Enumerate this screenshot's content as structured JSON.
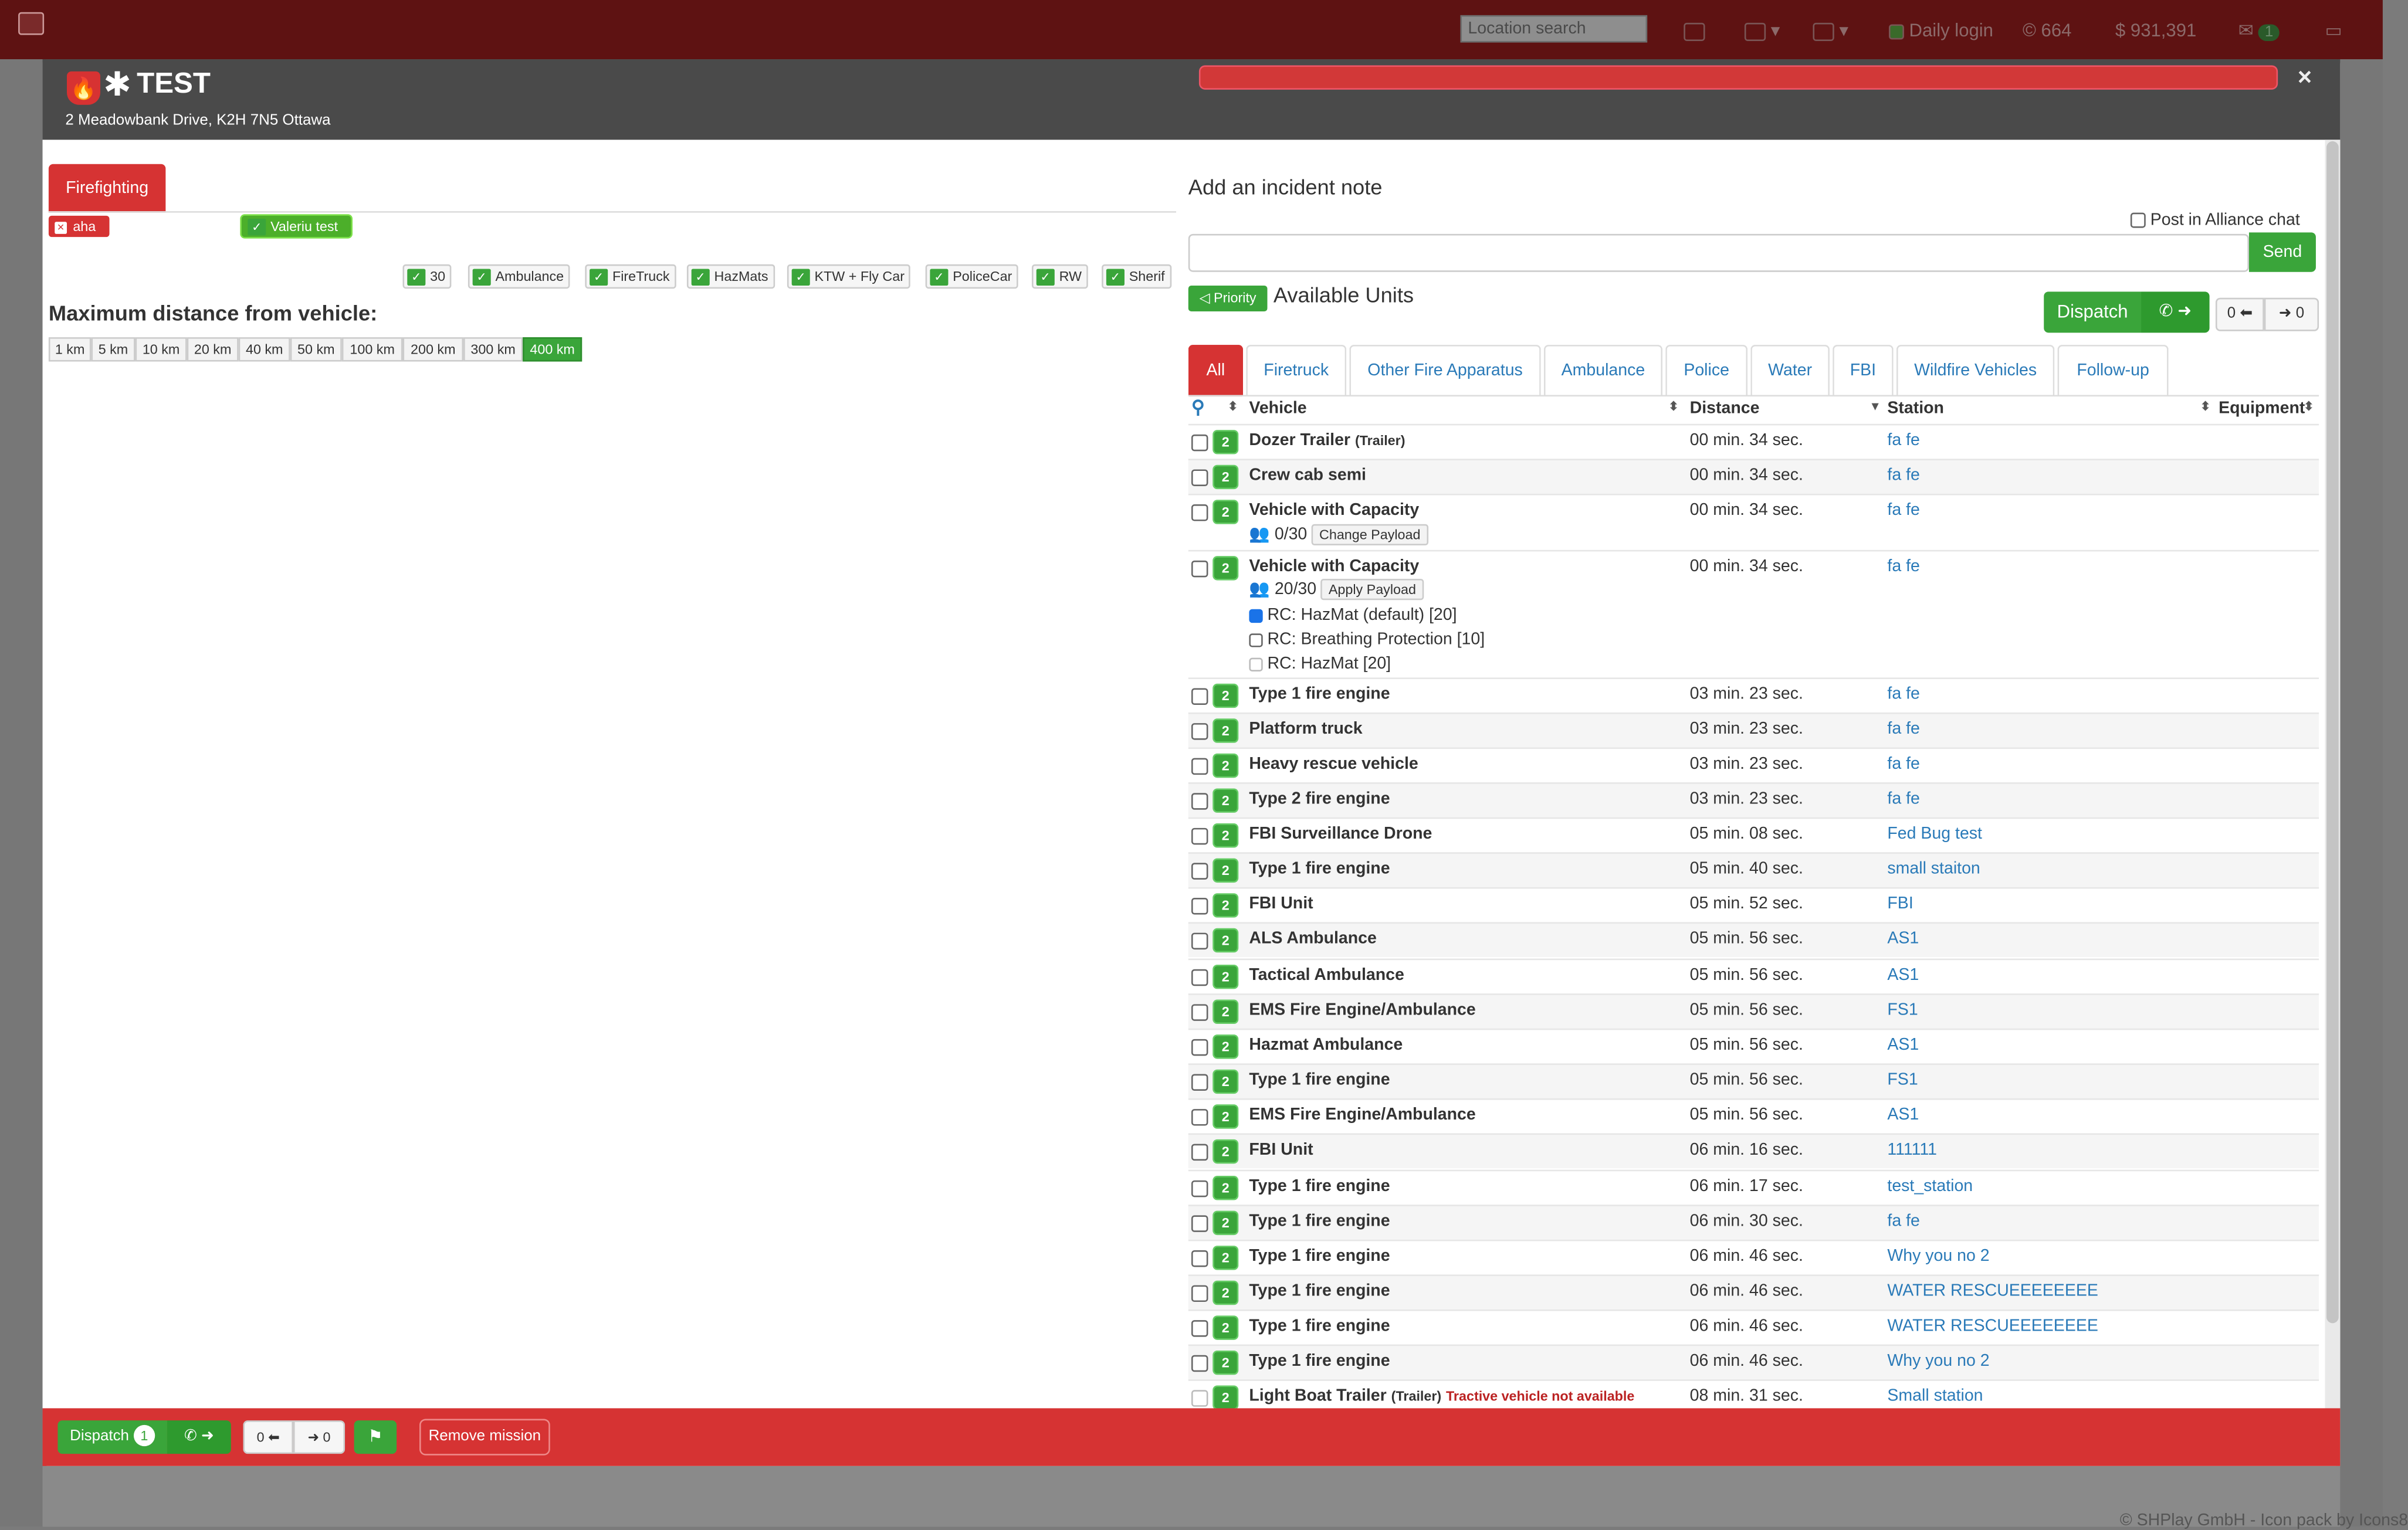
{
  "topbar": {
    "location_search_placeholder": "Location search",
    "daily_login": "Daily login",
    "coins": "664",
    "credits": "931,391",
    "messages_badge": "1"
  },
  "mission": {
    "title": "TEST",
    "address": "2 Meadowbank Drive, K2H 7N5 Ottawa",
    "close_label": "×"
  },
  "left": {
    "tab": "Firefighting",
    "tags": [
      "aha",
      "Valeriu test"
    ],
    "filters": [
      "30",
      "Ambulance",
      "FireTruck",
      "HazMats",
      "KTW + Fly Car",
      "PoliceCar",
      "RW",
      "Sherif"
    ],
    "max_distance_label": "Maximum distance from vehicle:",
    "distances": [
      "1 km",
      "5 km",
      "10 km",
      "20 km",
      "40 km",
      "50 km",
      "100 km",
      "200 km",
      "300 km",
      "400 km"
    ],
    "active_distance": "400 km"
  },
  "right": {
    "note_title": "Add an incident note",
    "post_alliance": "Post in Alliance chat",
    "send": "Send",
    "priority": "Priority",
    "available_units": "Available Units",
    "dispatch": "Dispatch",
    "back_count": "0",
    "forward_count": "0",
    "tabs": [
      "All",
      "Firetruck",
      "Other Fire Apparatus",
      "Ambulance",
      "Police",
      "Water",
      "FBI",
      "Wildfire Vehicles",
      "Follow-up"
    ],
    "columns": [
      "Vehicle",
      "Distance",
      "Station",
      "Equipment"
    ],
    "payload": {
      "row3_capacity": "0/30",
      "row3_button": "Change Payload",
      "row4_capacity": "20/30",
      "row4_button": "Apply Payload",
      "options": [
        "RC: HazMat (default) [20]",
        "RC: Breathing Protection [10]",
        "RC: HazMat [20]"
      ]
    },
    "rows": [
      {
        "count": "2",
        "vehicle": "Dozer Trailer",
        "tag": "(Trailer)",
        "distance": "00 min. 34 sec.",
        "station": "fa fe"
      },
      {
        "count": "2",
        "vehicle": "Crew cab semi",
        "distance": "00 min. 34 sec.",
        "station": "fa fe"
      },
      {
        "count": "2",
        "vehicle": "Vehicle with Capacity",
        "distance": "00 min. 34 sec.",
        "station": "fa fe"
      },
      {
        "count": "2",
        "vehicle": "Vehicle with Capacity",
        "distance": "00 min. 34 sec.",
        "station": "fa fe"
      },
      {
        "count": "2",
        "vehicle": "Type 1 fire engine",
        "distance": "03 min. 23 sec.",
        "station": "fa fe"
      },
      {
        "count": "2",
        "vehicle": "Platform truck",
        "distance": "03 min. 23 sec.",
        "station": "fa fe"
      },
      {
        "count": "2",
        "vehicle": "Heavy rescue vehicle",
        "distance": "03 min. 23 sec.",
        "station": "fa fe"
      },
      {
        "count": "2",
        "vehicle": "Type 2 fire engine",
        "distance": "03 min. 23 sec.",
        "station": "fa fe"
      },
      {
        "count": "2",
        "vehicle": "FBI Surveillance Drone",
        "distance": "05 min. 08 sec.",
        "station": "Fed Bug test"
      },
      {
        "count": "2",
        "vehicle": "Type 1 fire engine",
        "distance": "05 min. 40 sec.",
        "station": "small staiton"
      },
      {
        "count": "2",
        "vehicle": "FBI Unit",
        "distance": "05 min. 52 sec.",
        "station": "FBI"
      },
      {
        "count": "2",
        "vehicle": "ALS Ambulance",
        "distance": "05 min. 56 sec.",
        "station": "AS1"
      },
      {
        "count": "2",
        "vehicle": "Tactical Ambulance",
        "distance": "05 min. 56 sec.",
        "station": "AS1"
      },
      {
        "count": "2",
        "vehicle": "EMS Fire Engine/Ambulance",
        "distance": "05 min. 56 sec.",
        "station": "FS1"
      },
      {
        "count": "2",
        "vehicle": "Hazmat Ambulance",
        "distance": "05 min. 56 sec.",
        "station": "AS1"
      },
      {
        "count": "2",
        "vehicle": "Type 1 fire engine",
        "distance": "05 min. 56 sec.",
        "station": "FS1"
      },
      {
        "count": "2",
        "vehicle": "EMS Fire Engine/Ambulance",
        "distance": "05 min. 56 sec.",
        "station": "AS1"
      },
      {
        "count": "2",
        "vehicle": "FBI Unit",
        "distance": "06 min. 16 sec.",
        "station": "111111"
      },
      {
        "count": "2",
        "vehicle": "Type 1 fire engine",
        "distance": "06 min. 17 sec.",
        "station": "test_station"
      },
      {
        "count": "2",
        "vehicle": "Type 1 fire engine",
        "distance": "06 min. 30 sec.",
        "station": "fa fe"
      },
      {
        "count": "2",
        "vehicle": "Type 1 fire engine",
        "distance": "06 min. 46 sec.",
        "station": "Why you no 2"
      },
      {
        "count": "2",
        "vehicle": "Type 1 fire engine",
        "distance": "06 min. 46 sec.",
        "station": "WATER RESCUEEEEEEEE"
      },
      {
        "count": "2",
        "vehicle": "Type 1 fire engine",
        "distance": "06 min. 46 sec.",
        "station": "WATER RESCUEEEEEEEE"
      },
      {
        "count": "2",
        "vehicle": "Type 1 fire engine",
        "distance": "06 min. 46 sec.",
        "station": "Why you no 2"
      },
      {
        "count": "2",
        "vehicle": "Light Boat Trailer",
        "tag": "(Trailer)",
        "warning": "Tractive vehicle not available",
        "distance": "08 min. 31 sec.",
        "station": "Small station"
      }
    ]
  },
  "footer": {
    "dispatch": "Dispatch",
    "dispatch_count": "1",
    "back_count": "0",
    "forward_count": "0",
    "remove_mission": "Remove mission",
    "copyright": "© SHPlay GmbH - Icon pack by Icons8"
  },
  "colors": {
    "primary_red": "#d63333",
    "success_green": "#3aa53a",
    "link_blue": "#2a7ab8"
  }
}
